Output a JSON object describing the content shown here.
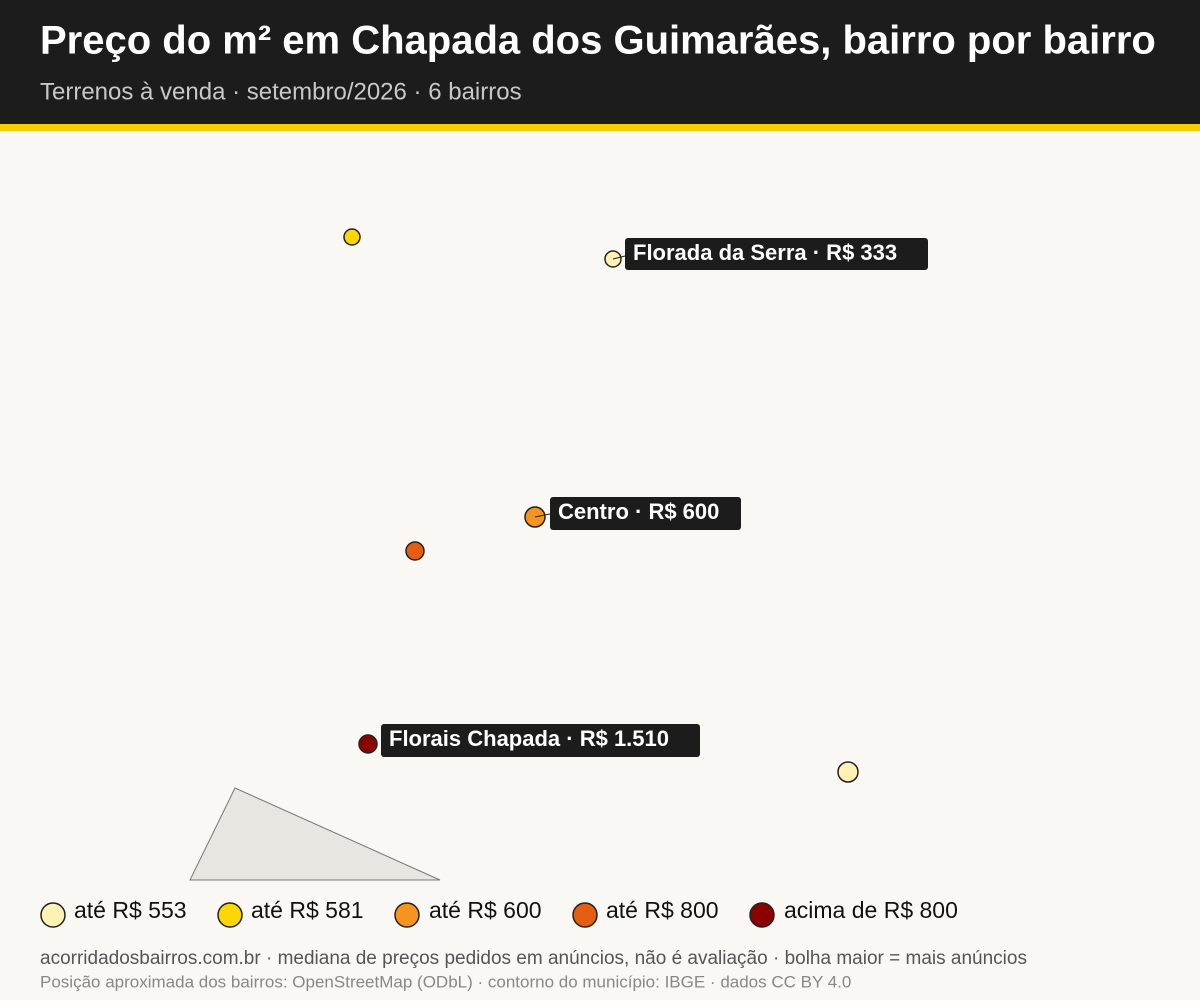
{
  "header": {
    "title": "Preço do m² em Chapada dos Guimarães, bairro por bairro",
    "subtitle": "Terrenos à venda · setembro/2026 · 6 bairros"
  },
  "map": {
    "labels": [
      "Florada da Serra · R$ 333",
      "Centro · R$ 600",
      "Florais Chapada · R$ 1.510"
    ]
  },
  "legend": {
    "items": [
      "até R$ 553",
      "até R$ 581",
      "até R$ 600",
      "até R$ 800",
      "acima de R$ 800"
    ]
  },
  "footer": {
    "lines": [
      "acorridadosbairros.com.br · mediana de preços pedidos em anúncios, não é avaliação · bolha maior = mais anúncios",
      "Posição aproximada dos bairros: OpenStreetMap (ODbL) · contorno do município: IBGE · dados CC BY 4.0"
    ]
  }
}
